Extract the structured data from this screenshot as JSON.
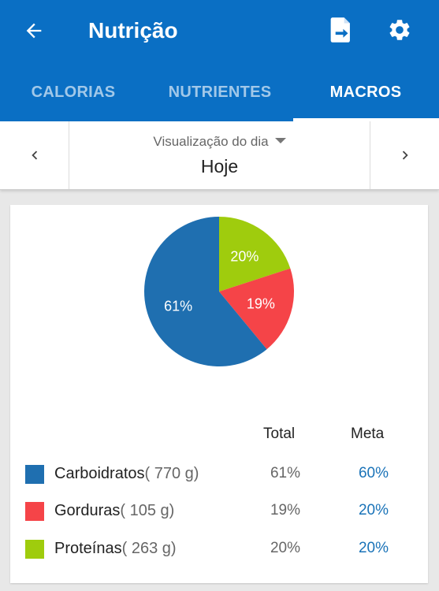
{
  "header": {
    "title": "Nutrição",
    "icons": {
      "back": "arrow-back-icon",
      "report": "document-export-icon",
      "settings": "gear-icon"
    }
  },
  "tabs": [
    {
      "label": "CALORIAS",
      "active": false
    },
    {
      "label": "NUTRIENTES",
      "active": false
    },
    {
      "label": "MACROS",
      "active": true
    }
  ],
  "day_selector": {
    "label": "Visualização do dia",
    "value": "Hoje"
  },
  "chart_data": {
    "type": "pie",
    "slices": [
      {
        "name": "Carboidratos",
        "value": 61,
        "label": "61%",
        "color": "#1f6fb0"
      },
      {
        "name": "Gorduras",
        "value": 19,
        "label": "19%",
        "color": "#f54448"
      },
      {
        "name": "Proteínas",
        "value": 20,
        "label": "20%",
        "color": "#9fcc0d"
      }
    ]
  },
  "table": {
    "headers": {
      "total": "Total",
      "goal": "Meta"
    },
    "rows": [
      {
        "name": "Carboidratos",
        "grams": "( 770 g)",
        "total": "61%",
        "goal": "60%",
        "color": "#1f6fb0"
      },
      {
        "name": "Gorduras",
        "grams": "( 105 g)",
        "total": "19%",
        "goal": "20%",
        "color": "#f54448"
      },
      {
        "name": "Proteínas",
        "grams": "( 263 g)",
        "total": "20%",
        "goal": "20%",
        "color": "#9fcc0d"
      }
    ]
  }
}
